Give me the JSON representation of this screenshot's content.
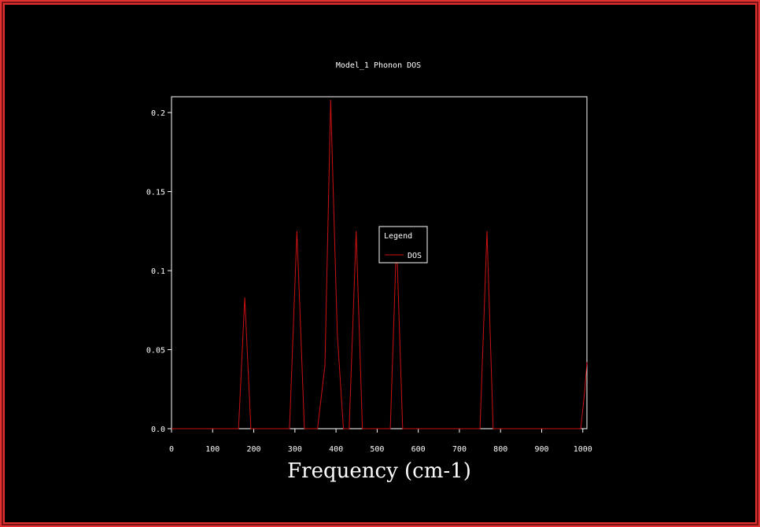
{
  "chart_data": {
    "type": "line",
    "title": "Model_1 Phonon DOS",
    "xlabel": "Frequency (cm-1)",
    "ylabel": "",
    "xlim": [
      0,
      1010
    ],
    "ylim": [
      0,
      0.21
    ],
    "xticks": [
      0,
      100,
      200,
      300,
      400,
      500,
      600,
      700,
      800,
      900,
      1000
    ],
    "yticks": [
      0,
      0.05,
      0.1,
      0.15,
      0.2
    ],
    "ytick_labels": [
      "0.0",
      "0.05",
      "0.1",
      "0.15",
      "0.2"
    ],
    "legend": {
      "title": "Legend",
      "placement": "center"
    },
    "series": [
      {
        "name": "DOS",
        "color": "#cc1111",
        "x": [
          0,
          163,
          178,
          193,
          210,
          287,
          305,
          323,
          340,
          355,
          373,
          387,
          403,
          418,
          432,
          449,
          464,
          480,
          532,
          547,
          562,
          580,
          750,
          767,
          782,
          800,
          995,
          1005,
          1010
        ],
        "y": [
          0,
          0,
          0.083,
          0,
          0,
          0,
          0.125,
          0,
          0,
          0,
          0.04,
          0.208,
          0.06,
          0,
          0,
          0.125,
          0,
          0,
          0,
          0.12,
          0,
          0,
          0,
          0.125,
          0,
          0,
          0,
          0.025,
          0.042
        ]
      }
    ]
  }
}
